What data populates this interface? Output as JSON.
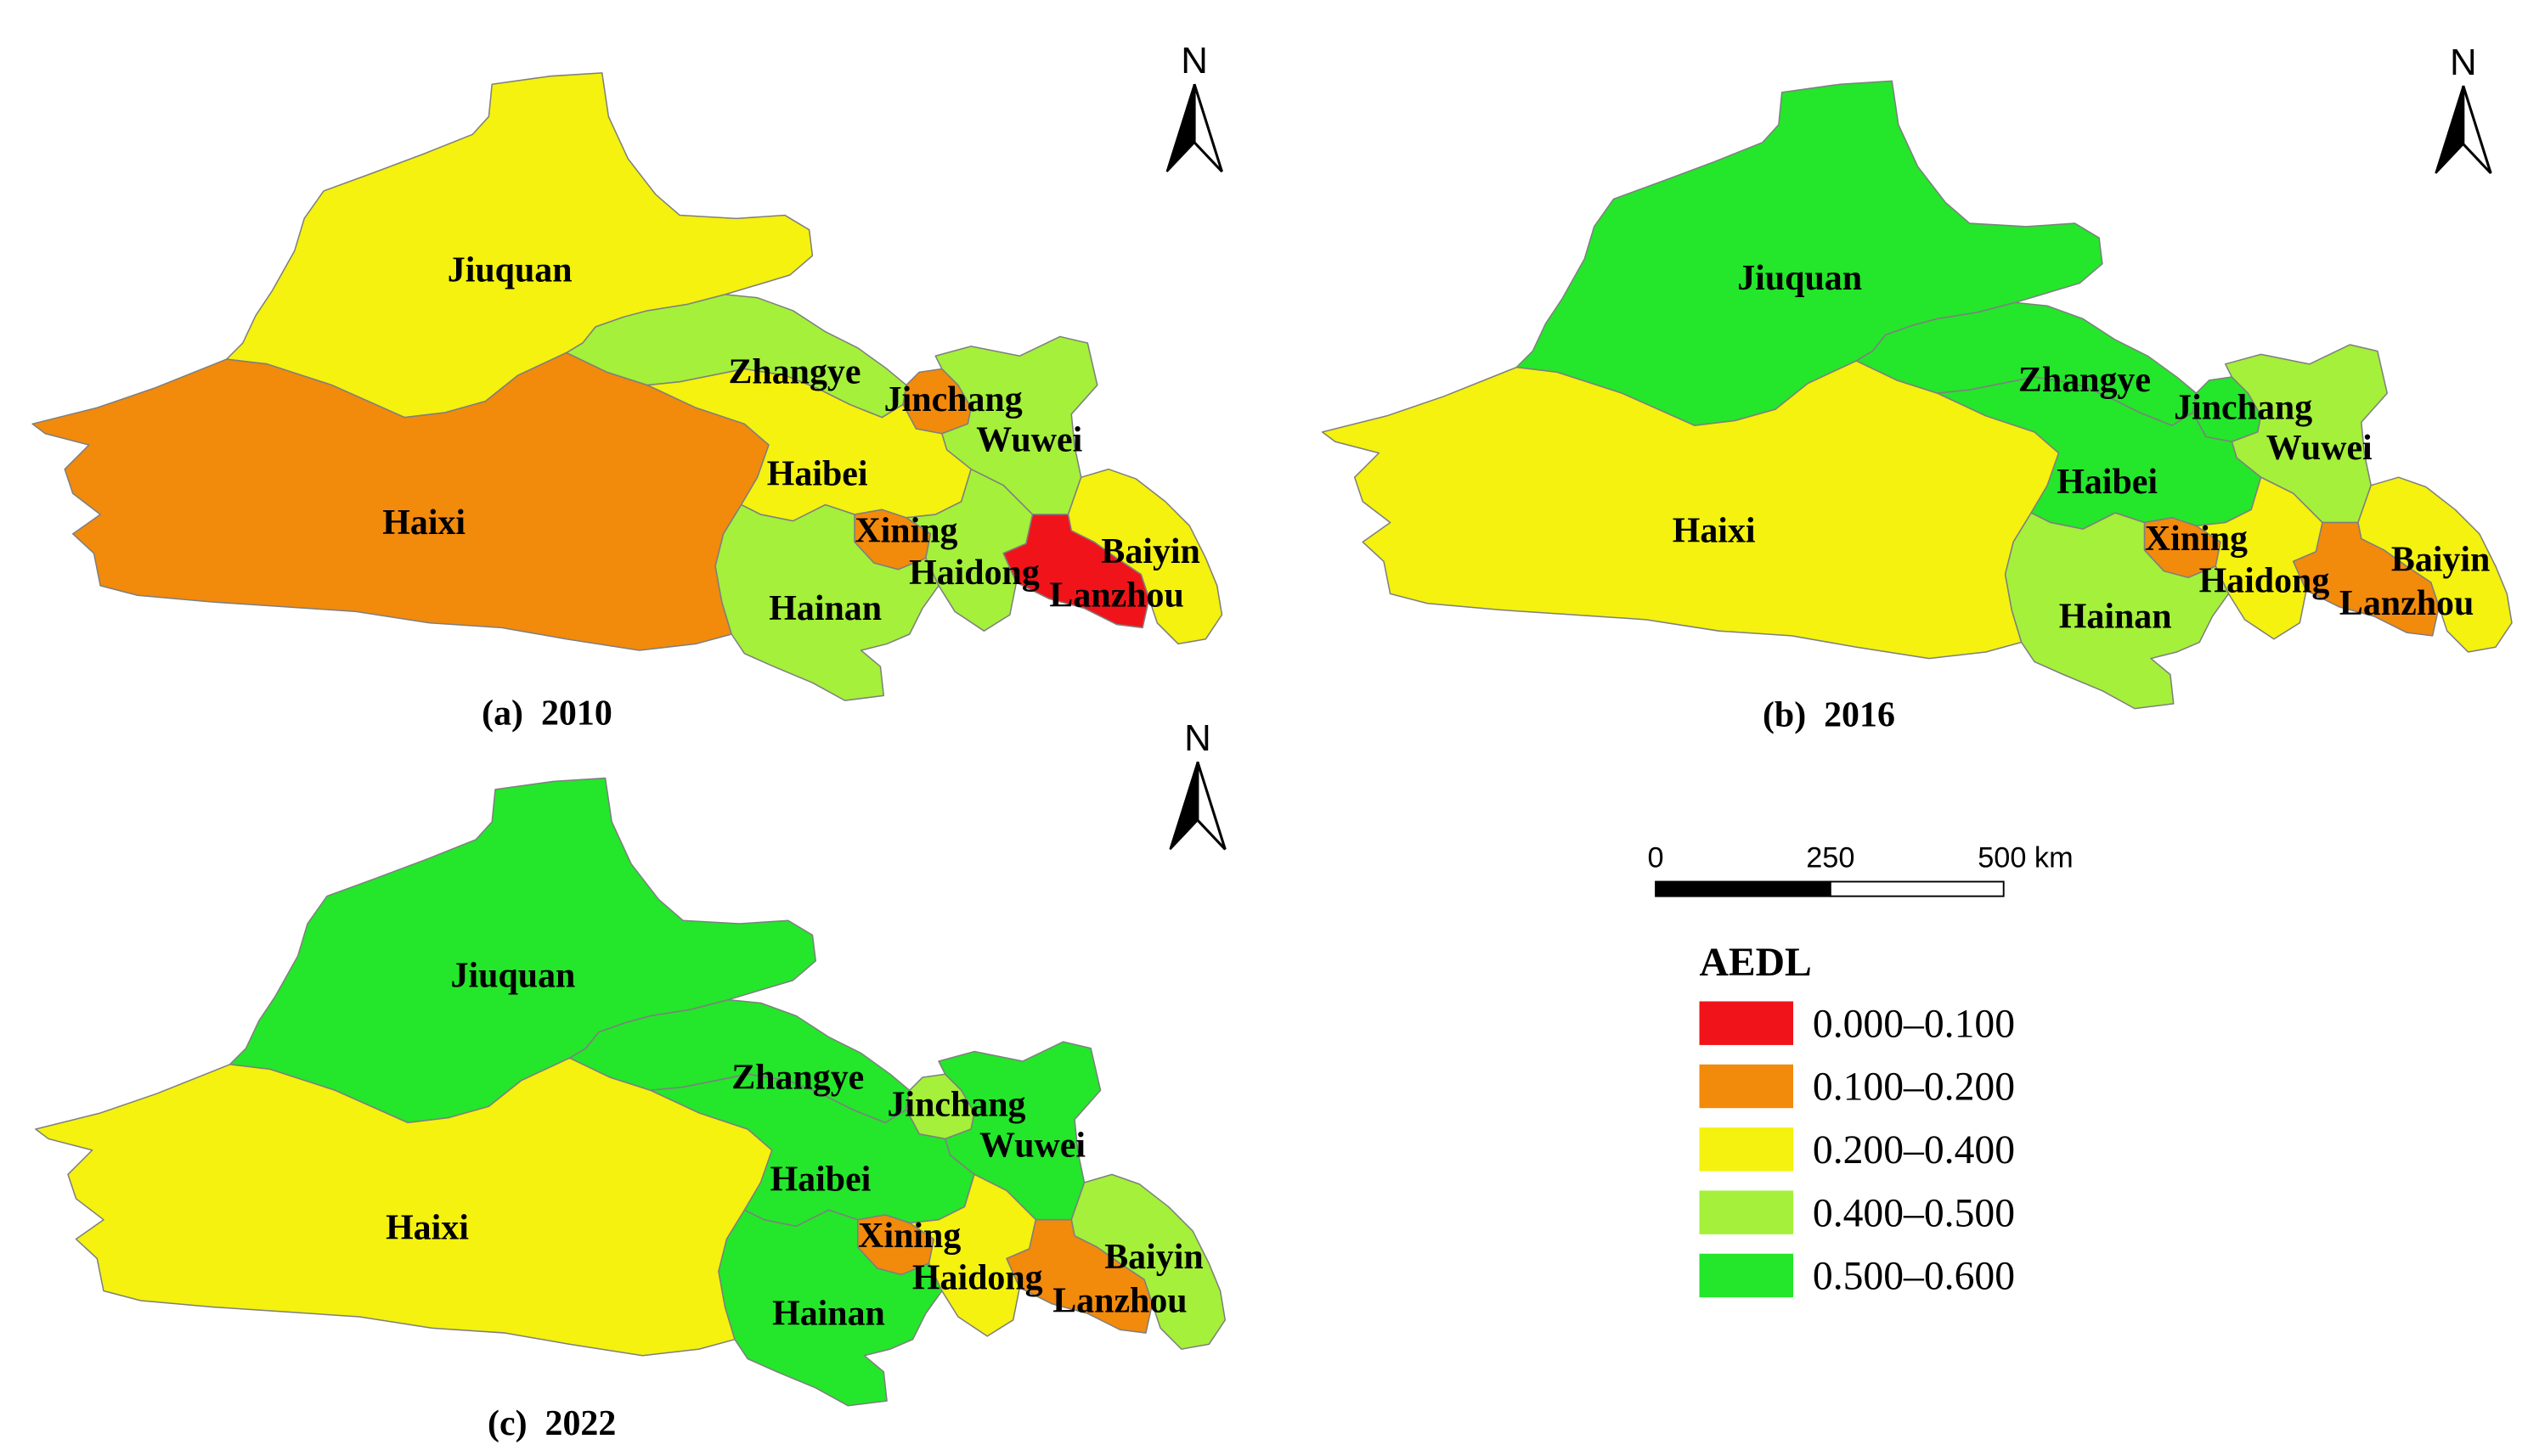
{
  "figure": {
    "panels": [
      {
        "caption": "(a)  2010",
        "north_label": "N",
        "regions": [
          {
            "name": "Jiuquan",
            "aedl_class": 2
          },
          {
            "name": "Haixi",
            "aedl_class": 1
          },
          {
            "name": "Zhangye",
            "aedl_class": 3
          },
          {
            "name": "Jinchang",
            "aedl_class": 1
          },
          {
            "name": "Wuwei",
            "aedl_class": 3
          },
          {
            "name": "Haibei",
            "aedl_class": 2
          },
          {
            "name": "Xining",
            "aedl_class": 1
          },
          {
            "name": "Haidong",
            "aedl_class": 3
          },
          {
            "name": "Hainan",
            "aedl_class": 3
          },
          {
            "name": "Baiyin",
            "aedl_class": 2
          },
          {
            "name": "Lanzhou",
            "aedl_class": 0
          }
        ]
      },
      {
        "caption": "(b)  2016",
        "north_label": "N",
        "regions": [
          {
            "name": "Jiuquan",
            "aedl_class": 4
          },
          {
            "name": "Haixi",
            "aedl_class": 2
          },
          {
            "name": "Zhangye",
            "aedl_class": 4
          },
          {
            "name": "Jinchang",
            "aedl_class": 4
          },
          {
            "name": "Wuwei",
            "aedl_class": 3
          },
          {
            "name": "Haibei",
            "aedl_class": 4
          },
          {
            "name": "Xining",
            "aedl_class": 1
          },
          {
            "name": "Haidong",
            "aedl_class": 2
          },
          {
            "name": "Hainan",
            "aedl_class": 3
          },
          {
            "name": "Baiyin",
            "aedl_class": 2
          },
          {
            "name": "Lanzhou",
            "aedl_class": 1
          }
        ]
      },
      {
        "caption": "(c)  2022",
        "north_label": "N",
        "regions": [
          {
            "name": "Jiuquan",
            "aedl_class": 4
          },
          {
            "name": "Haixi",
            "aedl_class": 2
          },
          {
            "name": "Zhangye",
            "aedl_class": 4
          },
          {
            "name": "Jinchang",
            "aedl_class": 3
          },
          {
            "name": "Wuwei",
            "aedl_class": 4
          },
          {
            "name": "Haibei",
            "aedl_class": 4
          },
          {
            "name": "Xining",
            "aedl_class": 1
          },
          {
            "name": "Haidong",
            "aedl_class": 2
          },
          {
            "name": "Hainan",
            "aedl_class": 4
          },
          {
            "name": "Baiyin",
            "aedl_class": 3
          },
          {
            "name": "Lanzhou",
            "aedl_class": 1
          }
        ]
      }
    ],
    "legend": {
      "title": "AEDL",
      "items": [
        {
          "label": "0.000–0.100",
          "color": "#F0141A"
        },
        {
          "label": "0.100–0.200",
          "color": "#F28A0C"
        },
        {
          "label": "0.200–0.400",
          "color": "#F4F20E"
        },
        {
          "label": "0.400–0.500",
          "color": "#A4F03A"
        },
        {
          "label": "0.500–0.600",
          "color": "#24E62B"
        }
      ]
    },
    "scale_bar": {
      "ticks": [
        "0",
        "250",
        "500 km"
      ]
    }
  }
}
